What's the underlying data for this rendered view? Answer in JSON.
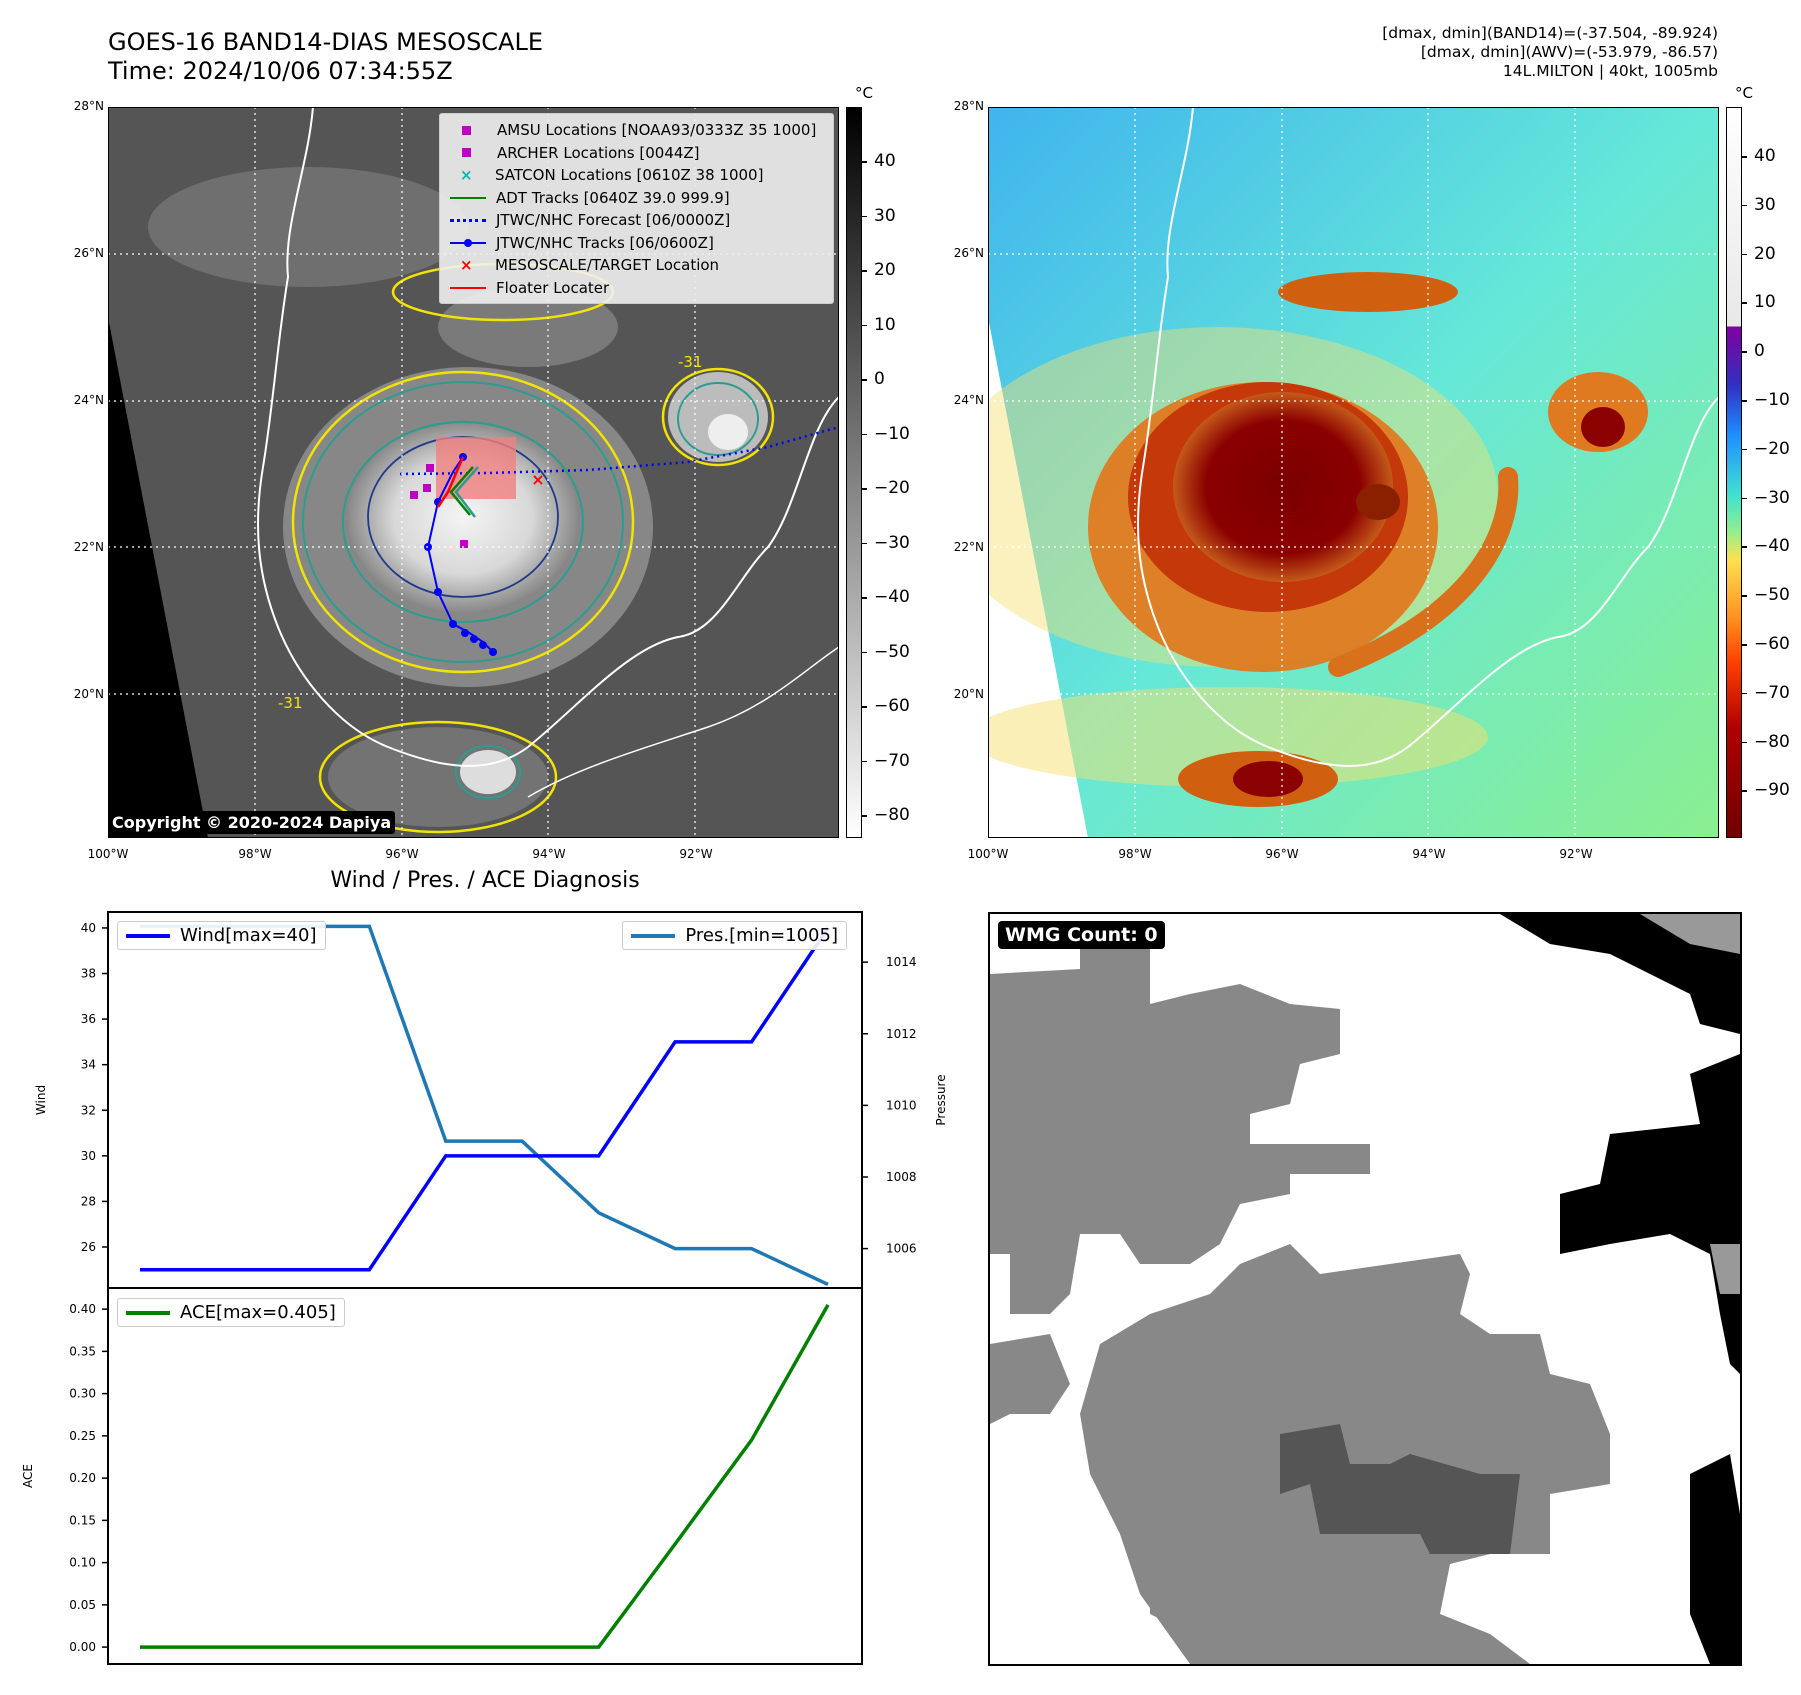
{
  "header": {
    "title_line1": "GOES-16 BAND14-DIAS MESOSCALE",
    "title_line2": "Time: 2024/10/06 07:34:55Z",
    "right_line1": "[dmax, dmin](BAND14)=(-37.504, -89.924)",
    "right_line2": "[dmax, dmin](AWV)=(-53.979, -86.57)",
    "right_line3": "14L.MILTON | 40kt, 1005mb"
  },
  "maps": {
    "lat_labels": [
      "28°N",
      "26°N",
      "24°N",
      "22°N",
      "20°N"
    ],
    "lon_labels": [
      "100°W",
      "98°W",
      "96°W",
      "94°W",
      "92°W"
    ],
    "copyright": "Copyright © 2020-2024 Dapiya",
    "contour_label": "-31",
    "ir_colorbar": {
      "unit": "°C",
      "ticks": [
        "40",
        "30",
        "20",
        "10",
        "0",
        "−10",
        "−20",
        "−30",
        "−40",
        "−50",
        "−60",
        "−70",
        "−80"
      ]
    },
    "color_colorbar": {
      "unit": "°C",
      "ticks": [
        "40",
        "30",
        "20",
        "10",
        "0",
        "−10",
        "−20",
        "−30",
        "−40",
        "−50",
        "−60",
        "−70",
        "−80",
        "−90"
      ]
    },
    "legend": [
      {
        "label": "AMSU Locations [NOAA93/0333Z 35 1000]",
        "marker": "square",
        "color": "#c000c0"
      },
      {
        "label": "ARCHER Locations [0044Z]",
        "marker": "square",
        "color": "#c000c0"
      },
      {
        "label": "SATCON Locations [0610Z 38 1000]",
        "marker": "x",
        "color": "#00b8b8"
      },
      {
        "label": "ADT Tracks [0640Z 39.0 999.9]",
        "marker": "line",
        "color": "#008000"
      },
      {
        "label": "JTWC/NHC Forecast [06/0000Z]",
        "marker": "dotted",
        "color": "#0000ff"
      },
      {
        "label": "JTWC/NHC Tracks [06/0600Z]",
        "marker": "line-dot",
        "color": "#0000ff"
      },
      {
        "label": "MESOSCALE/TARGET Location",
        "marker": "x",
        "color": "#ff0000"
      },
      {
        "label": "Floater Locater",
        "marker": "line",
        "color": "#ff0000"
      }
    ]
  },
  "diagnosis": {
    "title": "Wind / Pres. / ACE Diagnosis",
    "wind_legend": "Wind[max=40]",
    "pres_legend": "Pres.[min=1005]",
    "ace_legend": "ACE[max=0.405]",
    "ylabel_wind": "Wind",
    "ylabel_pres": "Pressure",
    "ylabel_ace": "ACE",
    "colors": {
      "wind": "#0000ff",
      "pres": "#1f77b4",
      "ace": "#008000"
    }
  },
  "wmg": {
    "label": "WMG Count: 0"
  },
  "chart_data": [
    {
      "type": "line",
      "title": "Wind / Pres. / ACE Diagnosis",
      "x": [
        0,
        1,
        2,
        3,
        4,
        5,
        6,
        7,
        8,
        9
      ],
      "series": [
        {
          "name": "Wind[max=40]",
          "axis": "left",
          "values": [
            25,
            25,
            25,
            25,
            30,
            30,
            30,
            35,
            35,
            40
          ]
        },
        {
          "name": "Pres.[min=1005]",
          "axis": "right",
          "values": [
            1015,
            1015,
            1015,
            1015,
            1009,
            1009,
            1007,
            1006,
            1006,
            1005
          ]
        }
      ],
      "ylabel": "Wind",
      "y2label": "Pressure",
      "ylim": [
        24.2,
        40.7
      ],
      "y2lim": [
        1004.9,
        1015.4
      ],
      "yticks": [
        26,
        28,
        30,
        32,
        34,
        36,
        38,
        40
      ],
      "y2ticks": [
        1006,
        1008,
        1010,
        1012,
        1014
      ]
    },
    {
      "type": "line",
      "x": [
        0,
        1,
        2,
        3,
        4,
        5,
        6,
        7,
        8,
        9
      ],
      "series": [
        {
          "name": "ACE[max=0.405]",
          "values": [
            0,
            0,
            0,
            0,
            0,
            0,
            0,
            0.122,
            0.245,
            0.405
          ]
        }
      ],
      "ylabel": "ACE",
      "ylim": [
        -0.02,
        0.425
      ],
      "yticks": [
        "0.00",
        "0.05",
        "0.10",
        "0.15",
        "0.20",
        "0.25",
        "0.30",
        "0.35",
        "0.40"
      ]
    }
  ]
}
